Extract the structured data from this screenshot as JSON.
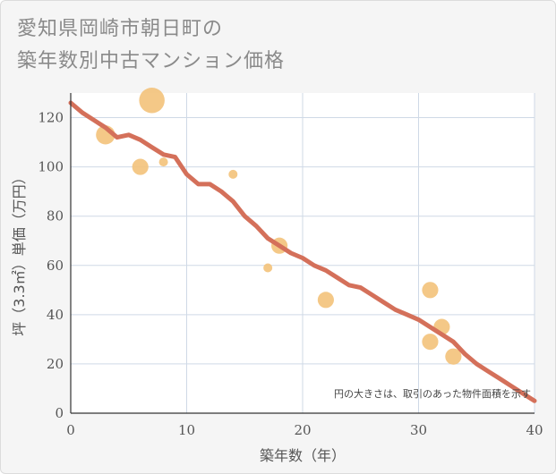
{
  "title": {
    "line1": "愛知県岡崎市朝日町の",
    "line2": "築年数別中古マンション価格"
  },
  "colors": {
    "background": "#f5f5f5",
    "plot_background": "#ffffff",
    "grid": "#cfd9e6",
    "line": "#d4705a",
    "bubble": "#f3c27a"
  },
  "chart_data": {
    "type": "scatter",
    "xlabel": "築年数（年）",
    "ylabel": "坪（3.3㎡）単価（万円）",
    "xlim": [
      0,
      40
    ],
    "ylim": [
      0,
      130
    ],
    "xticks": [
      0,
      10,
      20,
      30,
      40
    ],
    "yticks": [
      0,
      20,
      40,
      60,
      80,
      100,
      120
    ],
    "annotation": "円の大きさは、取引のあった物件面積を示す",
    "series": [
      {
        "name": "bubbles",
        "kind": "bubble",
        "points": [
          {
            "x": 3,
            "y": 113,
            "size": 3
          },
          {
            "x": 6,
            "y": 100,
            "size": 2
          },
          {
            "x": 7,
            "y": 127,
            "size": 6
          },
          {
            "x": 8,
            "y": 102,
            "size": 1
          },
          {
            "x": 14,
            "y": 97,
            "size": 1
          },
          {
            "x": 17,
            "y": 59,
            "size": 1
          },
          {
            "x": 18,
            "y": 68,
            "size": 2
          },
          {
            "x": 22,
            "y": 46,
            "size": 2
          },
          {
            "x": 31,
            "y": 50,
            "size": 2
          },
          {
            "x": 31,
            "y": 29,
            "size": 2
          },
          {
            "x": 32,
            "y": 35,
            "size": 2
          },
          {
            "x": 33,
            "y": 23,
            "size": 2
          }
        ]
      },
      {
        "name": "trend",
        "kind": "line",
        "x": [
          0,
          1,
          2,
          3,
          4,
          5,
          6,
          7,
          8,
          9,
          10,
          11,
          12,
          13,
          14,
          15,
          16,
          17,
          18,
          19,
          20,
          21,
          22,
          23,
          24,
          25,
          26,
          27,
          28,
          29,
          30,
          31,
          32,
          33,
          34,
          35,
          36,
          37,
          38,
          39,
          40
        ],
        "y": [
          126,
          122,
          119,
          116,
          112,
          113,
          111,
          108,
          105,
          104,
          97,
          93,
          93,
          90,
          86,
          80,
          76,
          71,
          68,
          65,
          63,
          60,
          58,
          55,
          52,
          51,
          48,
          45,
          42,
          40,
          38,
          35,
          32,
          29,
          24,
          20,
          17,
          14,
          11,
          8,
          5
        ]
      }
    ]
  }
}
